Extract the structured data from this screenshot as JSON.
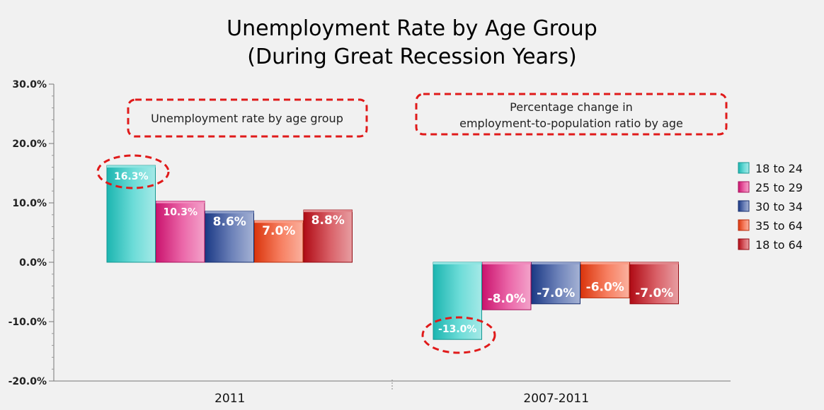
{
  "chart_data": {
    "type": "bar",
    "title": [
      "Unemployment Rate by Age Group",
      "(During Great Recession Years)"
    ],
    "xlabel": "",
    "ylabel": "",
    "categories": [
      "2011",
      "2007-2011"
    ],
    "ylim": [
      -20,
      30
    ],
    "yticks": [
      "30.0%",
      "20.0%",
      "10.0%",
      "0.0%",
      "-10.0%",
      "-20.0%"
    ],
    "grid": false,
    "legend_position": "right",
    "series": [
      {
        "name": "18 to 24",
        "values": [
          16.3,
          -13.0
        ],
        "labels": [
          "16.3%",
          "-13.0%"
        ],
        "color": "#1fc9c3"
      },
      {
        "name": "25 to 29",
        "values": [
          10.3,
          -8.0
        ],
        "labels": [
          "10.3%",
          "-8.0%"
        ],
        "color": "#e0167a"
      },
      {
        "name": "30 to 34",
        "values": [
          8.6,
          -7.0
        ],
        "labels": [
          "8.6%",
          "-7.0%"
        ],
        "color": "#1e3f94"
      },
      {
        "name": "35 to 64",
        "values": [
          7.0,
          -6.0
        ],
        "labels": [
          "7.0%",
          "-6.0%"
        ],
        "color": "#f23b0e"
      },
      {
        "name": "18 to 64",
        "values": [
          8.8,
          -7.0
        ],
        "labels": [
          "8.8%",
          "-7.0%"
        ],
        "color": "#c40c17"
      }
    ],
    "annotations": [
      {
        "lines": [
          "Unemployment rate by age group"
        ],
        "group": 0
      },
      {
        "lines": [
          "Percentage change in",
          "employment-to-population ratio by age"
        ],
        "group": 1
      }
    ],
    "highlight_color": "#e01a1a"
  }
}
